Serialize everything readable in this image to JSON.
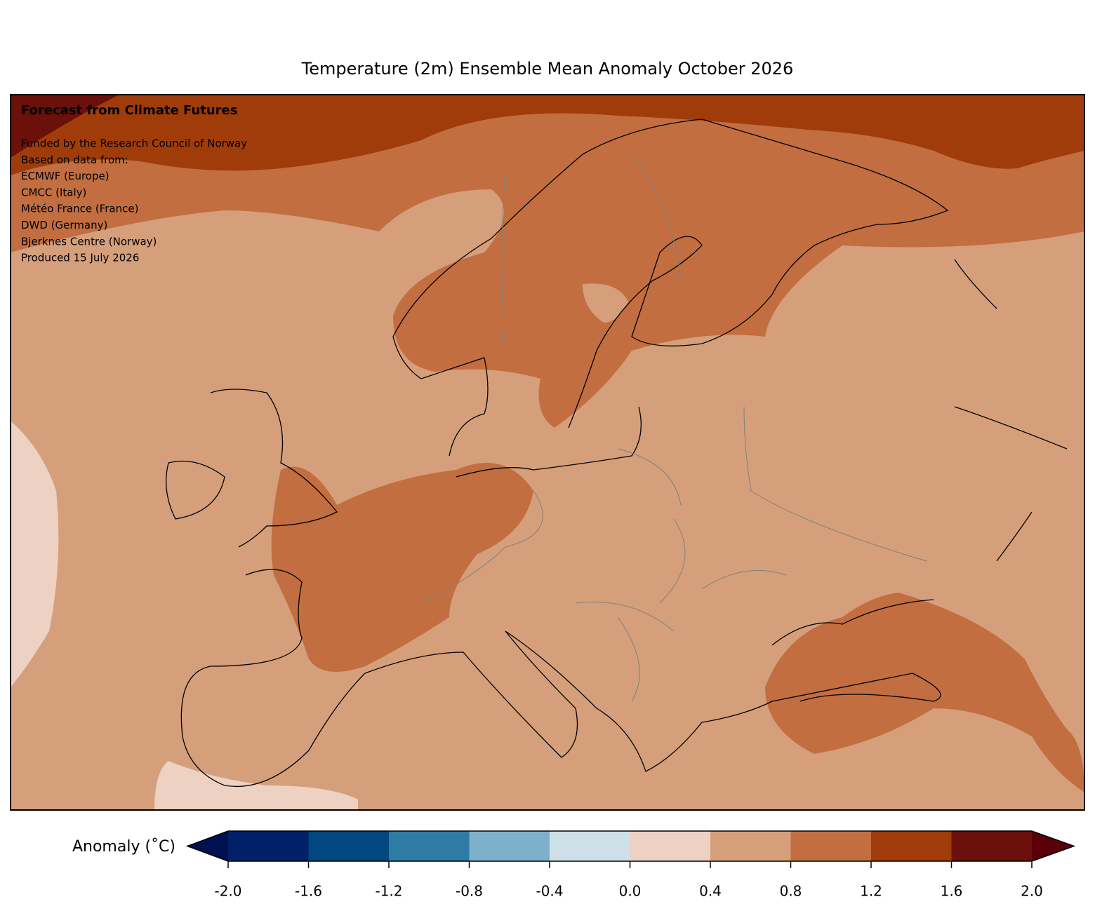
{
  "title": "Temperature (2m) Ensemble Mean Anomaly October 2026",
  "annotation": {
    "heading": "Forecast from Climate Futures",
    "lines": [
      "Funded by the Research Council of Norway",
      "Based on data from:",
      "ECMWF (Europe)",
      "CMCC (Italy)",
      "Météo France (France)",
      "DWD (Germany)",
      "Bjerknes Centre (Norway)",
      "Produced 15 July 2026"
    ]
  },
  "colorbar": {
    "label": "Anomaly (˚C)",
    "ticks": [
      {
        "value": -2.0,
        "label": "-2.0"
      },
      -1.6,
      -1.2,
      -0.8,
      -0.4,
      {
        "value": 0.0,
        "label": "0.0"
      },
      0.4,
      0.8,
      1.2,
      1.6,
      {
        "value": 2.0,
        "label": "2.0"
      }
    ],
    "colors": [
      "#00206a",
      "#02477f",
      "#2e7ba6",
      "#7fb0cb",
      "#cde0e8",
      "#edd1c2",
      "#d59f7b",
      "#c26e40",
      "#a03c0a",
      "#6b100a"
    ],
    "extend_low_color": "#001050",
    "extend_high_color": "#5a0008"
  }
}
